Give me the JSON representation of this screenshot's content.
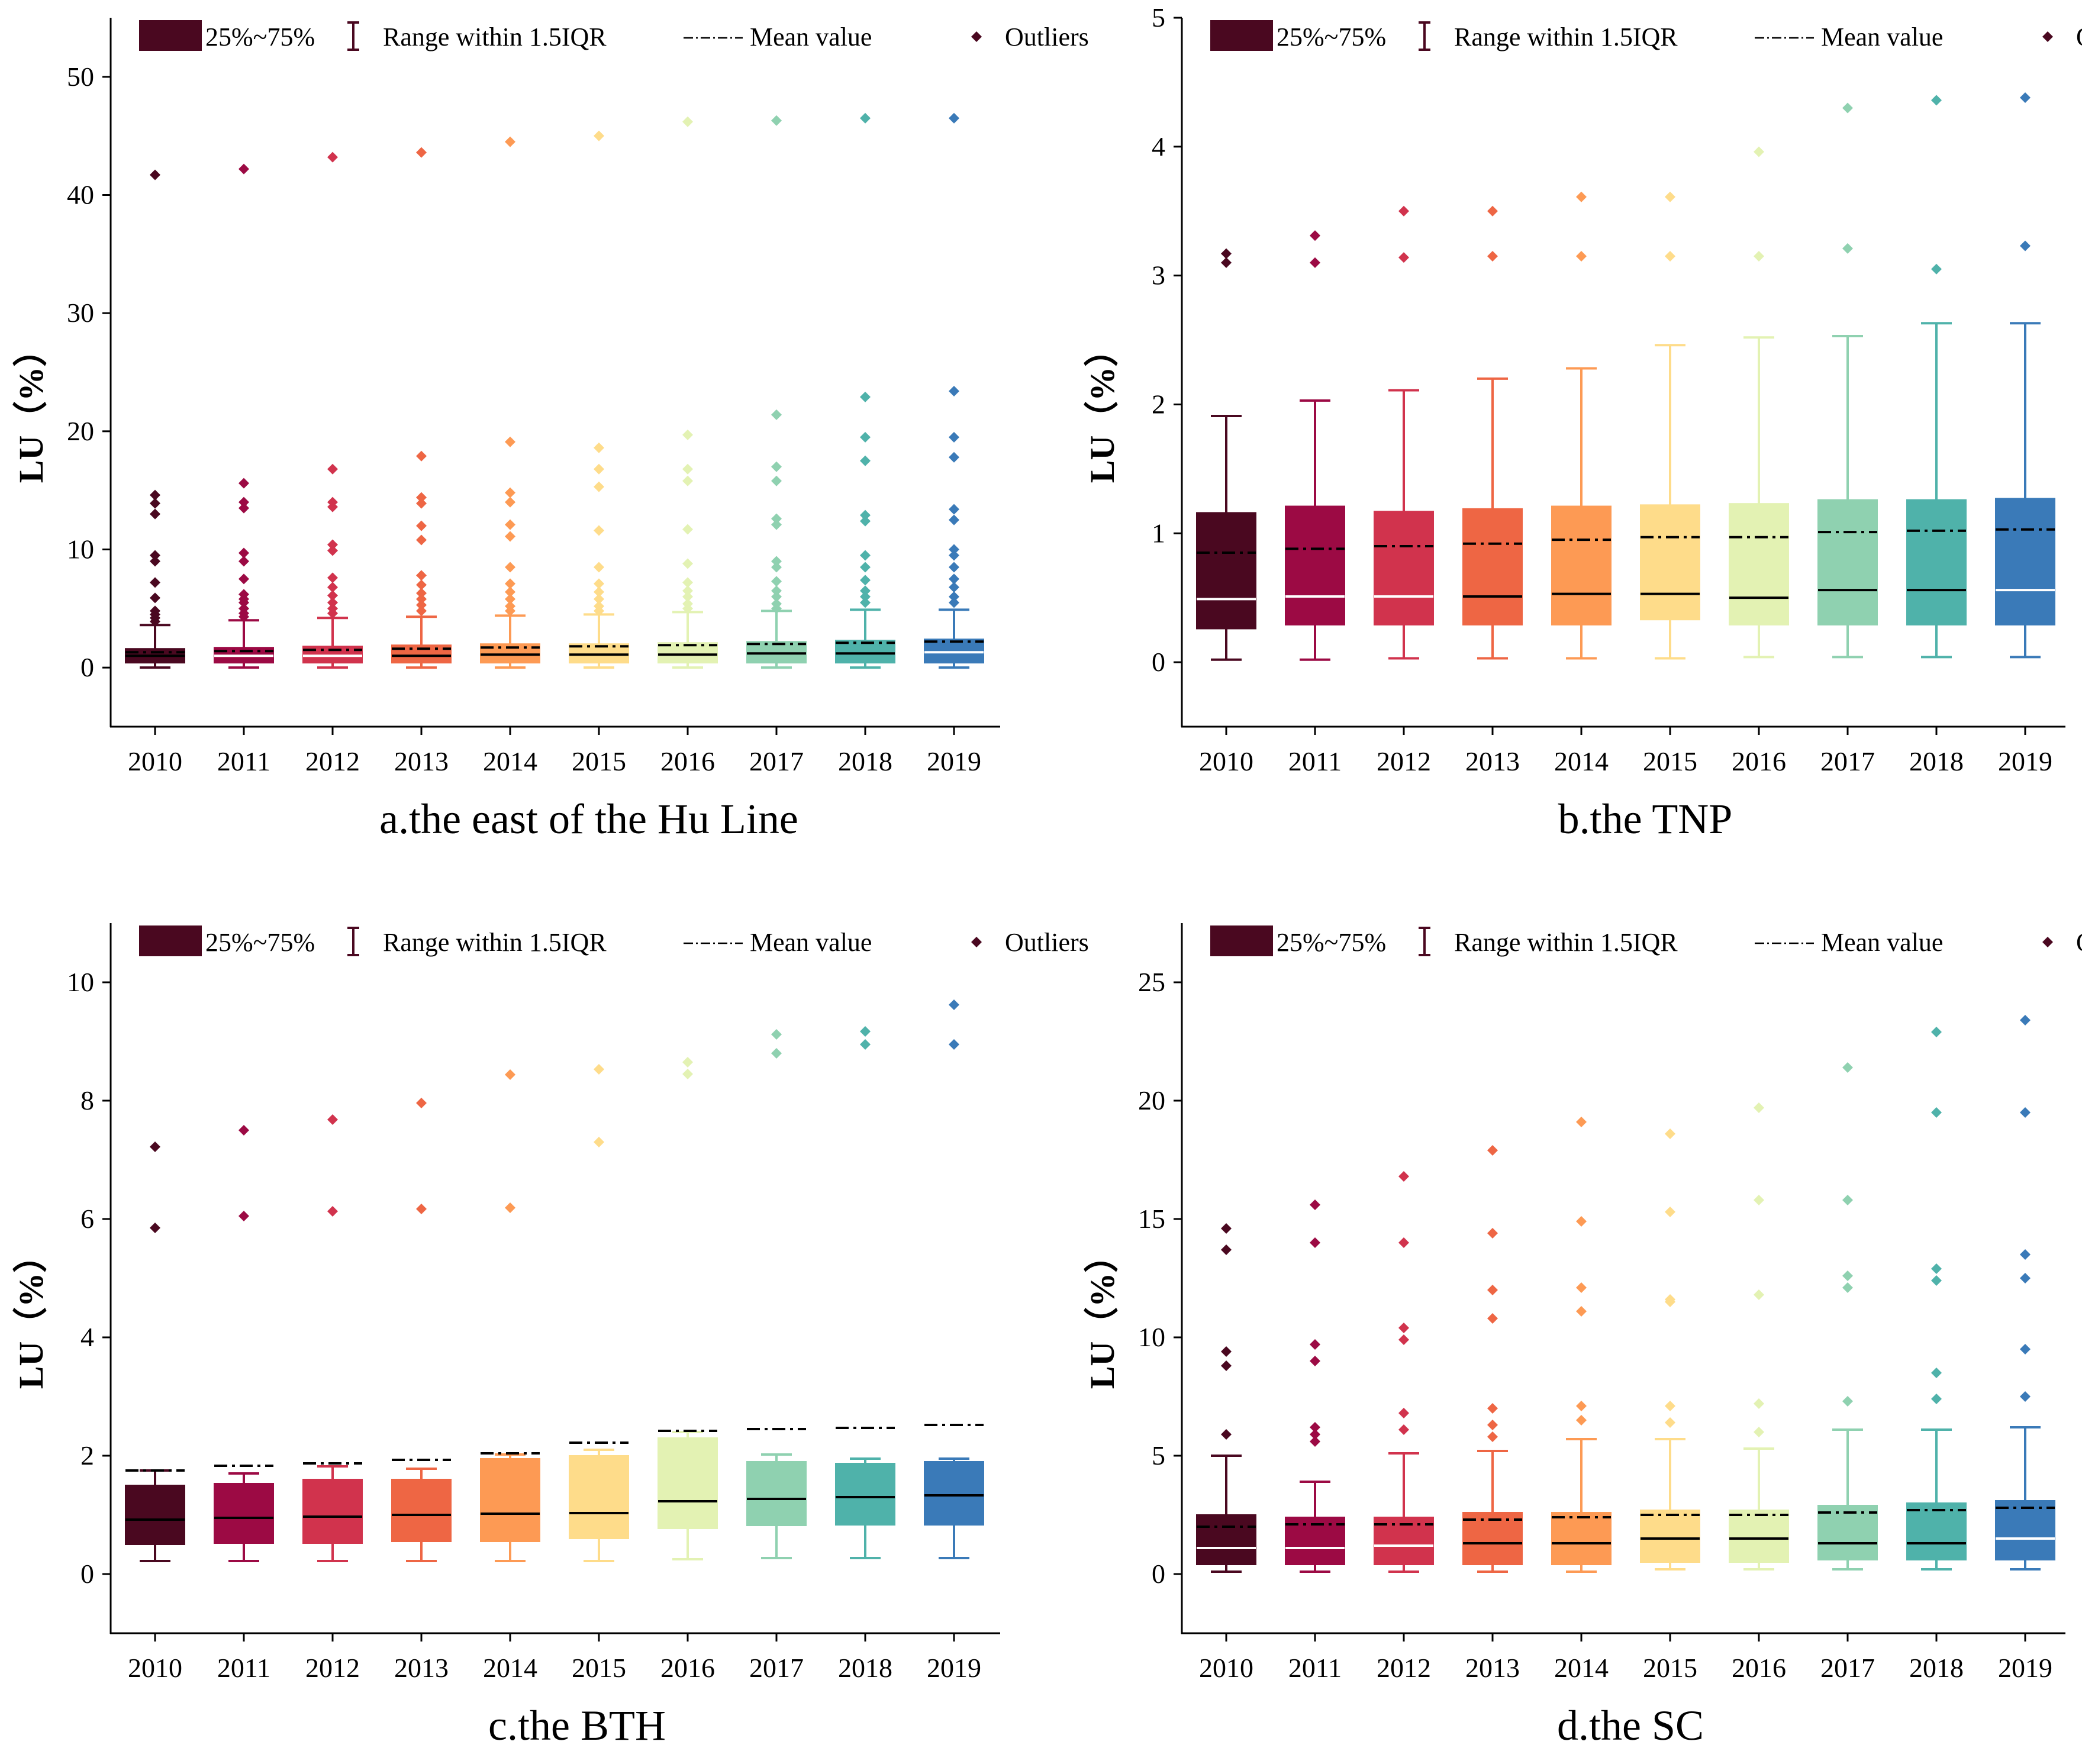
{
  "legend": {
    "box_label": "25%~75%",
    "whisker_label": "Range within 1.5IQR",
    "mean_label": "Mean value",
    "outlier_label": "Outliers"
  },
  "colors": [
    "#4a0820",
    "#9c0a44",
    "#d1334d",
    "#ee6644",
    "#fd9a54",
    "#fedc8a",
    "#e3f2b3",
    "#8fd1b0",
    "#4fb2aa",
    "#3a7ab8"
  ],
  "chart_data": [
    {
      "id": "a",
      "type": "box",
      "title": "a.the east of the Hu Line",
      "ylabel": "LU（%）",
      "ylim": [
        -5,
        55
      ],
      "yticks": [
        0,
        10,
        20,
        30,
        40,
        50
      ],
      "categories": [
        "2010",
        "2011",
        "2012",
        "2013",
        "2014",
        "2015",
        "2016",
        "2017",
        "2018",
        "2019"
      ],
      "boxes": [
        {
          "q1": 0.4,
          "median": 1.0,
          "q3": 1.6,
          "wlo": 0.0,
          "whi": 3.6,
          "mean": 1.3,
          "median_color": "#000",
          "outliers": [
            41.7,
            14.6,
            13.9,
            13.0,
            9.5,
            9.0,
            7.2,
            5.9,
            4.8,
            4.5,
            4.2,
            3.9
          ]
        },
        {
          "q1": 0.4,
          "median": 1.0,
          "q3": 1.7,
          "wlo": 0.0,
          "whi": 4.0,
          "mean": 1.4,
          "median_color": "#fff",
          "outliers": [
            42.2,
            15.6,
            14.0,
            13.5,
            9.7,
            9.0,
            7.5,
            6.2,
            5.8,
            5.5,
            5.0,
            4.6,
            4.3
          ]
        },
        {
          "q1": 0.4,
          "median": 1.0,
          "q3": 1.8,
          "wlo": 0.0,
          "whi": 4.2,
          "mean": 1.5,
          "median_color": "#fff",
          "outliers": [
            43.2,
            16.8,
            14.0,
            13.6,
            10.4,
            9.9,
            7.6,
            6.8,
            6.1,
            5.5,
            5.0,
            4.6
          ]
        },
        {
          "q1": 0.4,
          "median": 1.0,
          "q3": 1.9,
          "wlo": 0.0,
          "whi": 4.3,
          "mean": 1.6,
          "median_color": "#000",
          "outliers": [
            43.6,
            17.9,
            14.4,
            13.9,
            12.0,
            10.8,
            7.8,
            7.0,
            6.3,
            5.8,
            5.3,
            4.8
          ]
        },
        {
          "q1": 0.4,
          "median": 1.1,
          "q3": 2.0,
          "wlo": 0.0,
          "whi": 4.4,
          "mean": 1.7,
          "median_color": "#000",
          "outliers": [
            44.5,
            19.1,
            14.8,
            14.0,
            12.1,
            11.1,
            8.5,
            7.1,
            6.4,
            5.8,
            5.2,
            4.8
          ]
        },
        {
          "q1": 0.4,
          "median": 1.1,
          "q3": 2.0,
          "wlo": 0.0,
          "whi": 4.5,
          "mean": 1.8,
          "median_color": "#000",
          "outliers": [
            45.0,
            18.6,
            16.8,
            15.3,
            11.6,
            8.5,
            7.1,
            6.4,
            5.8,
            5.2,
            4.8
          ]
        },
        {
          "q1": 0.4,
          "median": 1.1,
          "q3": 2.1,
          "wlo": 0.0,
          "whi": 4.7,
          "mean": 1.9,
          "median_color": "#000",
          "outliers": [
            46.2,
            19.7,
            16.8,
            15.8,
            11.7,
            8.8,
            7.2,
            6.5,
            6.0,
            5.4,
            5.0
          ]
        },
        {
          "q1": 0.4,
          "median": 1.2,
          "q3": 2.2,
          "wlo": 0.0,
          "whi": 4.8,
          "mean": 2.0,
          "median_color": "#000",
          "outliers": [
            46.3,
            21.4,
            17.0,
            15.8,
            12.6,
            12.1,
            9.0,
            8.5,
            7.3,
            6.5,
            6.0,
            5.4,
            5.0
          ]
        },
        {
          "q1": 0.4,
          "median": 1.2,
          "q3": 2.3,
          "wlo": 0.0,
          "whi": 4.9,
          "mean": 2.1,
          "median_color": "#000",
          "outliers": [
            46.5,
            22.9,
            19.5,
            17.5,
            12.9,
            12.4,
            9.5,
            8.5,
            7.4,
            6.5,
            6.0,
            5.5
          ]
        },
        {
          "q1": 0.4,
          "median": 1.3,
          "q3": 2.4,
          "wlo": 0.0,
          "whi": 4.9,
          "mean": 2.2,
          "median_color": "#fff",
          "outliers": [
            46.5,
            23.4,
            19.5,
            17.8,
            13.4,
            12.5,
            10.0,
            9.5,
            8.5,
            7.5,
            6.8,
            6.0,
            5.5
          ]
        }
      ]
    },
    {
      "id": "b",
      "type": "box",
      "title": "b.the TNP",
      "ylabel": "LU（%）",
      "ylim": [
        -0.5,
        5
      ],
      "yticks": [
        0,
        1,
        2,
        3,
        4,
        5
      ],
      "categories": [
        "2010",
        "2011",
        "2012",
        "2013",
        "2014",
        "2015",
        "2016",
        "2017",
        "2018",
        "2019"
      ],
      "boxes": [
        {
          "q1": 0.26,
          "median": 0.49,
          "q3": 1.16,
          "wlo": 0.02,
          "whi": 1.91,
          "mean": 0.85,
          "median_color": "#fff",
          "outliers": [
            3.17,
            3.1
          ]
        },
        {
          "q1": 0.29,
          "median": 0.51,
          "q3": 1.21,
          "wlo": 0.02,
          "whi": 2.03,
          "mean": 0.88,
          "median_color": "#fff",
          "outliers": [
            3.31,
            3.1
          ]
        },
        {
          "q1": 0.29,
          "median": 0.51,
          "q3": 1.17,
          "wlo": 0.03,
          "whi": 2.11,
          "mean": 0.9,
          "median_color": "#fff",
          "outliers": [
            3.5,
            3.14
          ]
        },
        {
          "q1": 0.29,
          "median": 0.51,
          "q3": 1.19,
          "wlo": 0.03,
          "whi": 2.2,
          "mean": 0.92,
          "median_color": "#000",
          "outliers": [
            3.5,
            3.15
          ]
        },
        {
          "q1": 0.29,
          "median": 0.53,
          "q3": 1.21,
          "wlo": 0.03,
          "whi": 2.28,
          "mean": 0.95,
          "median_color": "#000",
          "outliers": [
            3.61,
            3.15
          ]
        },
        {
          "q1": 0.33,
          "median": 0.53,
          "q3": 1.22,
          "wlo": 0.03,
          "whi": 2.46,
          "mean": 0.97,
          "median_color": "#000",
          "outliers": [
            3.61,
            3.15
          ]
        },
        {
          "q1": 0.29,
          "median": 0.5,
          "q3": 1.23,
          "wlo": 0.04,
          "whi": 2.52,
          "mean": 0.97,
          "median_color": "#000",
          "outliers": [
            3.96,
            3.15
          ]
        },
        {
          "q1": 0.29,
          "median": 0.56,
          "q3": 1.26,
          "wlo": 0.04,
          "whi": 2.53,
          "mean": 1.01,
          "median_color": "#000",
          "outliers": [
            4.3,
            3.21
          ]
        },
        {
          "q1": 0.29,
          "median": 0.56,
          "q3": 1.26,
          "wlo": 0.04,
          "whi": 2.63,
          "mean": 1.02,
          "median_color": "#000",
          "outliers": [
            4.36,
            3.05
          ]
        },
        {
          "q1": 0.29,
          "median": 0.56,
          "q3": 1.27,
          "wlo": 0.04,
          "whi": 2.63,
          "mean": 1.03,
          "median_color": "#fff",
          "outliers": [
            4.38,
            3.23
          ]
        }
      ]
    },
    {
      "id": "c",
      "type": "box",
      "title": "c.the BTH",
      "ylabel": "LU（%）",
      "ylim": [
        -1,
        11
      ],
      "yticks": [
        0,
        2,
        4,
        6,
        8,
        10
      ],
      "categories": [
        "2010",
        "2011",
        "2012",
        "2013",
        "2014",
        "2015",
        "2016",
        "2017",
        "2018",
        "2019"
      ],
      "boxes": [
        {
          "q1": 0.5,
          "median": 0.92,
          "q3": 1.5,
          "wlo": 0.22,
          "whi": 1.75,
          "mean": 1.75,
          "median_color": "#000",
          "outliers": [
            7.22,
            5.85
          ]
        },
        {
          "q1": 0.52,
          "median": 0.95,
          "q3": 1.53,
          "wlo": 0.22,
          "whi": 1.7,
          "mean": 1.83,
          "median_color": "#000",
          "outliers": [
            7.5,
            6.05
          ]
        },
        {
          "q1": 0.52,
          "median": 0.97,
          "q3": 1.6,
          "wlo": 0.22,
          "whi": 1.82,
          "mean": 1.87,
          "median_color": "#000",
          "outliers": [
            7.68,
            6.13
          ]
        },
        {
          "q1": 0.55,
          "median": 1.0,
          "q3": 1.6,
          "wlo": 0.22,
          "whi": 1.78,
          "mean": 1.93,
          "median_color": "#000",
          "outliers": [
            7.96,
            6.17
          ]
        },
        {
          "q1": 0.55,
          "median": 1.02,
          "q3": 1.95,
          "wlo": 0.22,
          "whi": 2.02,
          "mean": 2.04,
          "median_color": "#000",
          "outliers": [
            8.44,
            6.19
          ]
        },
        {
          "q1": 0.6,
          "median": 1.03,
          "q3": 2.0,
          "wlo": 0.22,
          "whi": 2.1,
          "mean": 2.22,
          "median_color": "#000",
          "outliers": [
            8.53,
            7.3
          ]
        },
        {
          "q1": 0.77,
          "median": 1.23,
          "q3": 2.3,
          "wlo": 0.25,
          "whi": 2.4,
          "mean": 2.42,
          "median_color": "#000",
          "outliers": [
            8.65,
            8.45
          ]
        },
        {
          "q1": 0.82,
          "median": 1.27,
          "q3": 1.9,
          "wlo": 0.27,
          "whi": 2.02,
          "mean": 2.45,
          "median_color": "#000",
          "outliers": [
            9.12,
            8.8
          ]
        },
        {
          "q1": 0.83,
          "median": 1.3,
          "q3": 1.87,
          "wlo": 0.27,
          "whi": 1.95,
          "mean": 2.47,
          "median_color": "#000",
          "outliers": [
            9.17,
            8.95
          ]
        },
        {
          "q1": 0.83,
          "median": 1.33,
          "q3": 1.9,
          "wlo": 0.27,
          "whi": 1.95,
          "mean": 2.52,
          "median_color": "#000",
          "outliers": [
            9.62,
            8.95
          ]
        }
      ]
    },
    {
      "id": "d",
      "type": "box",
      "title": "d.the SC",
      "ylabel": "LU（%）",
      "ylim": [
        -2.5,
        27.5
      ],
      "yticks": [
        0,
        5,
        10,
        15,
        20,
        25
      ],
      "categories": [
        "2010",
        "2011",
        "2012",
        "2013",
        "2014",
        "2015",
        "2016",
        "2017",
        "2018",
        "2019"
      ],
      "boxes": [
        {
          "q1": 0.4,
          "median": 1.1,
          "q3": 2.5,
          "wlo": 0.1,
          "whi": 5.0,
          "mean": 2.0,
          "median_color": "#fff",
          "outliers": [
            14.6,
            13.7,
            9.4,
            8.8,
            5.9
          ]
        },
        {
          "q1": 0.4,
          "median": 1.1,
          "q3": 2.4,
          "wlo": 0.1,
          "whi": 3.9,
          "mean": 2.1,
          "median_color": "#fff",
          "outliers": [
            15.6,
            14.0,
            9.7,
            9.0,
            6.2,
            5.9,
            5.6
          ]
        },
        {
          "q1": 0.4,
          "median": 1.2,
          "q3": 2.4,
          "wlo": 0.1,
          "whi": 5.1,
          "mean": 2.1,
          "median_color": "#fff",
          "outliers": [
            16.8,
            14.0,
            10.4,
            9.9,
            6.8,
            6.1
          ]
        },
        {
          "q1": 0.4,
          "median": 1.3,
          "q3": 2.6,
          "wlo": 0.1,
          "whi": 5.2,
          "mean": 2.3,
          "median_color": "#000",
          "outliers": [
            17.9,
            14.4,
            12.0,
            10.8,
            7.0,
            6.3,
            5.8
          ]
        },
        {
          "q1": 0.4,
          "median": 1.3,
          "q3": 2.6,
          "wlo": 0.1,
          "whi": 5.7,
          "mean": 2.4,
          "median_color": "#000",
          "outliers": [
            19.1,
            14.9,
            12.1,
            11.1,
            7.1,
            6.5
          ]
        },
        {
          "q1": 0.5,
          "median": 1.5,
          "q3": 2.7,
          "wlo": 0.2,
          "whi": 5.7,
          "mean": 2.5,
          "median_color": "#000",
          "outliers": [
            18.6,
            15.3,
            11.6,
            11.5,
            7.1,
            6.4
          ]
        },
        {
          "q1": 0.5,
          "median": 1.5,
          "q3": 2.7,
          "wlo": 0.2,
          "whi": 5.3,
          "mean": 2.5,
          "median_color": "#000",
          "outliers": [
            19.7,
            15.8,
            11.8,
            7.2,
            6.0
          ]
        },
        {
          "q1": 0.6,
          "median": 1.3,
          "q3": 2.9,
          "wlo": 0.2,
          "whi": 6.1,
          "mean": 2.6,
          "median_color": "#000",
          "outliers": [
            21.4,
            15.8,
            12.6,
            12.1,
            7.3
          ]
        },
        {
          "q1": 0.6,
          "median": 1.3,
          "q3": 3.0,
          "wlo": 0.2,
          "whi": 6.1,
          "mean": 2.7,
          "median_color": "#000",
          "outliers": [
            22.9,
            19.5,
            12.9,
            12.4,
            8.5,
            7.4
          ]
        },
        {
          "q1": 0.6,
          "median": 1.5,
          "q3": 3.1,
          "wlo": 0.2,
          "whi": 6.2,
          "mean": 2.8,
          "median_color": "#fff",
          "outliers": [
            23.4,
            19.5,
            13.5,
            12.5,
            9.5,
            7.5
          ]
        }
      ]
    }
  ]
}
